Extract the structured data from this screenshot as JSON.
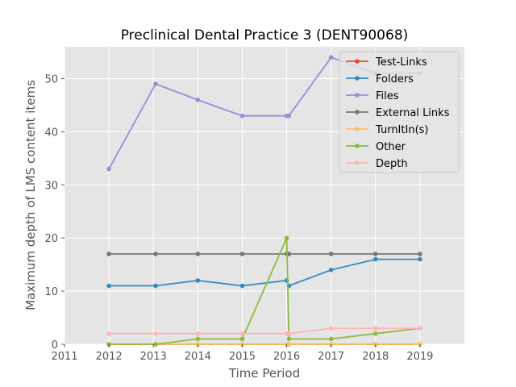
{
  "chart_data": {
    "type": "line",
    "title": "Preclinical Dental Practice 3 (DENT90068)",
    "xlabel": "Time Period",
    "ylabel": "Maximum depth of LMS content items",
    "xlim": [
      2011,
      2020
    ],
    "ylim": [
      0,
      56
    ],
    "xticks": [
      "2011",
      "2012",
      "2013",
      "2014",
      "2015",
      "2016",
      "2017",
      "2018",
      "2019"
    ],
    "yticks": [
      "0",
      "10",
      "20",
      "30",
      "40",
      "50"
    ],
    "grid": true,
    "legend_position": "top-right",
    "series": [
      {
        "name": "Test-Links",
        "color": "#E24A33",
        "x": [
          2012,
          2013.05,
          2014,
          2015,
          2016,
          2016.05,
          2017,
          2018,
          2019
        ],
        "y": [
          0,
          0,
          0,
          0,
          0,
          0,
          0,
          0,
          0
        ]
      },
      {
        "name": "Folders",
        "color": "#348ABD",
        "x": [
          2012,
          2013.05,
          2014,
          2015,
          2016,
          2016.05,
          2017,
          2018,
          2019
        ],
        "y": [
          11,
          11,
          12,
          11,
          12,
          11,
          14,
          16,
          16
        ]
      },
      {
        "name": "Files",
        "color": "#988ED5",
        "x": [
          2012,
          2013.05,
          2014,
          2015,
          2016,
          2016.05,
          2017,
          2018,
          2019
        ],
        "y": [
          33,
          49,
          46,
          43,
          43,
          43,
          54,
          51,
          51
        ]
      },
      {
        "name": "External Links",
        "color": "#777777",
        "x": [
          2012,
          2013.05,
          2014,
          2015,
          2016,
          2016.05,
          2017,
          2018,
          2019
        ],
        "y": [
          17,
          17,
          17,
          17,
          17,
          17,
          17,
          17,
          17
        ]
      },
      {
        "name": "TurnItIn(s)",
        "color": "#FBC15E",
        "x": [
          2012,
          2013.05,
          2014,
          2015,
          2016,
          2016.05,
          2017,
          2018,
          2019
        ],
        "y": [
          0,
          0,
          0,
          0,
          0,
          0,
          0,
          0,
          0
        ]
      },
      {
        "name": "Other",
        "color": "#8EBA42",
        "x": [
          2012,
          2013.05,
          2014,
          2015,
          2016,
          2016.05,
          2017,
          2018,
          2019
        ],
        "y": [
          0,
          0,
          1,
          1,
          20,
          1,
          1,
          2,
          3
        ]
      },
      {
        "name": "Depth",
        "color": "#FFB5B8",
        "x": [
          2012,
          2013.05,
          2014,
          2015,
          2016,
          2016.05,
          2017,
          2018,
          2019
        ],
        "y": [
          2,
          2,
          2,
          2,
          2,
          2,
          3,
          3,
          3
        ]
      }
    ]
  }
}
